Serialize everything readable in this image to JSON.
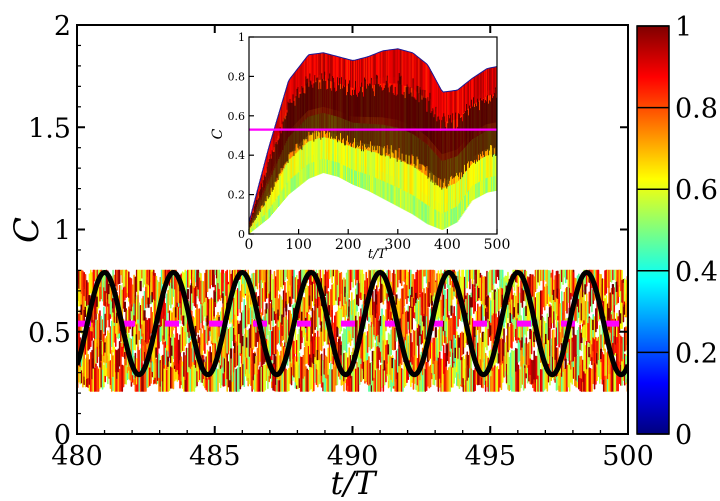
{
  "chart_data": [
    {
      "type": "line",
      "role": "main",
      "xlabel": "t/T",
      "ylabel": "C",
      "xlim": [
        480,
        500
      ],
      "ylim": [
        0,
        2
      ],
      "xticks": [
        "480",
        "485",
        "490",
        "495",
        "500"
      ],
      "yticks": [
        "0",
        "0.5",
        "1",
        "1.5",
        "2"
      ],
      "series": [
        {
          "name": "black oscillation",
          "color": "#000000",
          "period": 2.5,
          "mean": 0.54,
          "amplitude": 0.25,
          "first_peak_t": 481.0
        },
        {
          "name": "time average",
          "color": "#ff00ff",
          "style": "dashed",
          "value": 0.54
        },
        {
          "name": "colored ensemble band",
          "colormap": "jet",
          "lower_envelope": 0.21,
          "upper_envelope": 0.8
        }
      ]
    },
    {
      "type": "line",
      "role": "inset",
      "xlabel": "t/T",
      "ylabel": "C",
      "xlim": [
        0,
        500
      ],
      "ylim": [
        0,
        1
      ],
      "xticks": [
        "0",
        "100",
        "200",
        "300",
        "400",
        "500"
      ],
      "yticks": [
        "0",
        "0.2",
        "0.4",
        "0.6",
        "0.8",
        "1"
      ],
      "series": [
        {
          "name": "upper envelope",
          "x": [
            0,
            40,
            80,
            120,
            150,
            180,
            210,
            240,
            270,
            300,
            330,
            360,
            390,
            420,
            450,
            480,
            500
          ],
          "values": [
            0.06,
            0.44,
            0.78,
            0.91,
            0.92,
            0.9,
            0.88,
            0.9,
            0.93,
            0.94,
            0.92,
            0.86,
            0.72,
            0.73,
            0.79,
            0.84,
            0.85
          ]
        },
        {
          "name": "lower envelope",
          "x": [
            0,
            40,
            80,
            120,
            150,
            180,
            210,
            240,
            270,
            300,
            330,
            360,
            390,
            420,
            450,
            480,
            500
          ],
          "values": [
            0.0,
            0.08,
            0.2,
            0.28,
            0.31,
            0.29,
            0.25,
            0.22,
            0.18,
            0.14,
            0.1,
            0.05,
            0.02,
            0.06,
            0.17,
            0.21,
            0.22
          ]
        },
        {
          "name": "time average",
          "color": "#ff00ff",
          "value": 0.53
        }
      ]
    }
  ],
  "colorbar": {
    "ticks": [
      "0",
      "0.2",
      "0.4",
      "0.6",
      "0.8",
      "1"
    ],
    "min": 0,
    "max": 1,
    "colors": [
      "#00007f",
      "#0000ff",
      "#007fff",
      "#00ffff",
      "#7fff7f",
      "#ffff00",
      "#ff7f00",
      "#ff0000",
      "#7f0000"
    ]
  }
}
